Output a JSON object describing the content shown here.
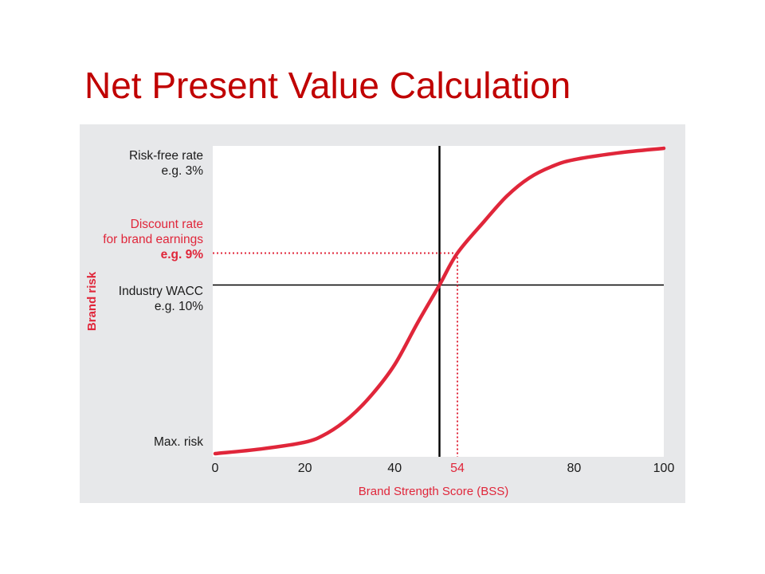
{
  "slide": {
    "title": "Net Present Value Calculation"
  },
  "colors": {
    "title": "#c00000",
    "curve": "#e0263a",
    "accent_text": "#e0263a",
    "panel_bg": "#e7e8ea",
    "plot_bg": "#ffffff",
    "axis": "#000000"
  },
  "chart_data": {
    "type": "line",
    "xlabel": "Brand Strength Score (BSS)",
    "ylabel": "Brand risk",
    "xlim": [
      0,
      100
    ],
    "x_ticks": [
      "0",
      "20",
      "40",
      "54",
      "80",
      "100"
    ],
    "x_tick_values": [
      0,
      20,
      40,
      54,
      80,
      100
    ],
    "highlight_tick": "54",
    "y_labels": [
      {
        "lines": [
          "Risk-free rate",
          "e.g. 3%"
        ],
        "level": "risk-free",
        "highlight": false
      },
      {
        "lines": [
          "Discount rate",
          "for brand earnings",
          "e.g. 9%"
        ],
        "level": "discount",
        "highlight": true
      },
      {
        "lines": [
          "Industry WACC",
          "e.g. 10%"
        ],
        "level": "wacc",
        "highlight": false
      },
      {
        "lines": [
          "Max. risk"
        ],
        "level": "max",
        "highlight": false
      }
    ],
    "vertical_reference_x": 50,
    "horizontal_reference": "wacc",
    "dotted_marker": {
      "x": 54,
      "level": "discount"
    },
    "series": [
      {
        "x": [
          0,
          10,
          20,
          25,
          30,
          35,
          40,
          45,
          50,
          54,
          60,
          65,
          70,
          75,
          80,
          90,
          100
        ],
        "y": [
          0.0,
          0.02,
          0.05,
          0.09,
          0.16,
          0.26,
          0.39,
          0.57,
          0.74,
          0.88,
          1.02,
          1.13,
          1.21,
          1.26,
          1.29,
          1.32,
          1.34
        ]
      }
    ],
    "y_level_values": {
      "risk-free": 1.34,
      "discount": 0.88,
      "wacc": 0.74,
      "max": 0.0
    },
    "grid": false,
    "legend": "none"
  }
}
